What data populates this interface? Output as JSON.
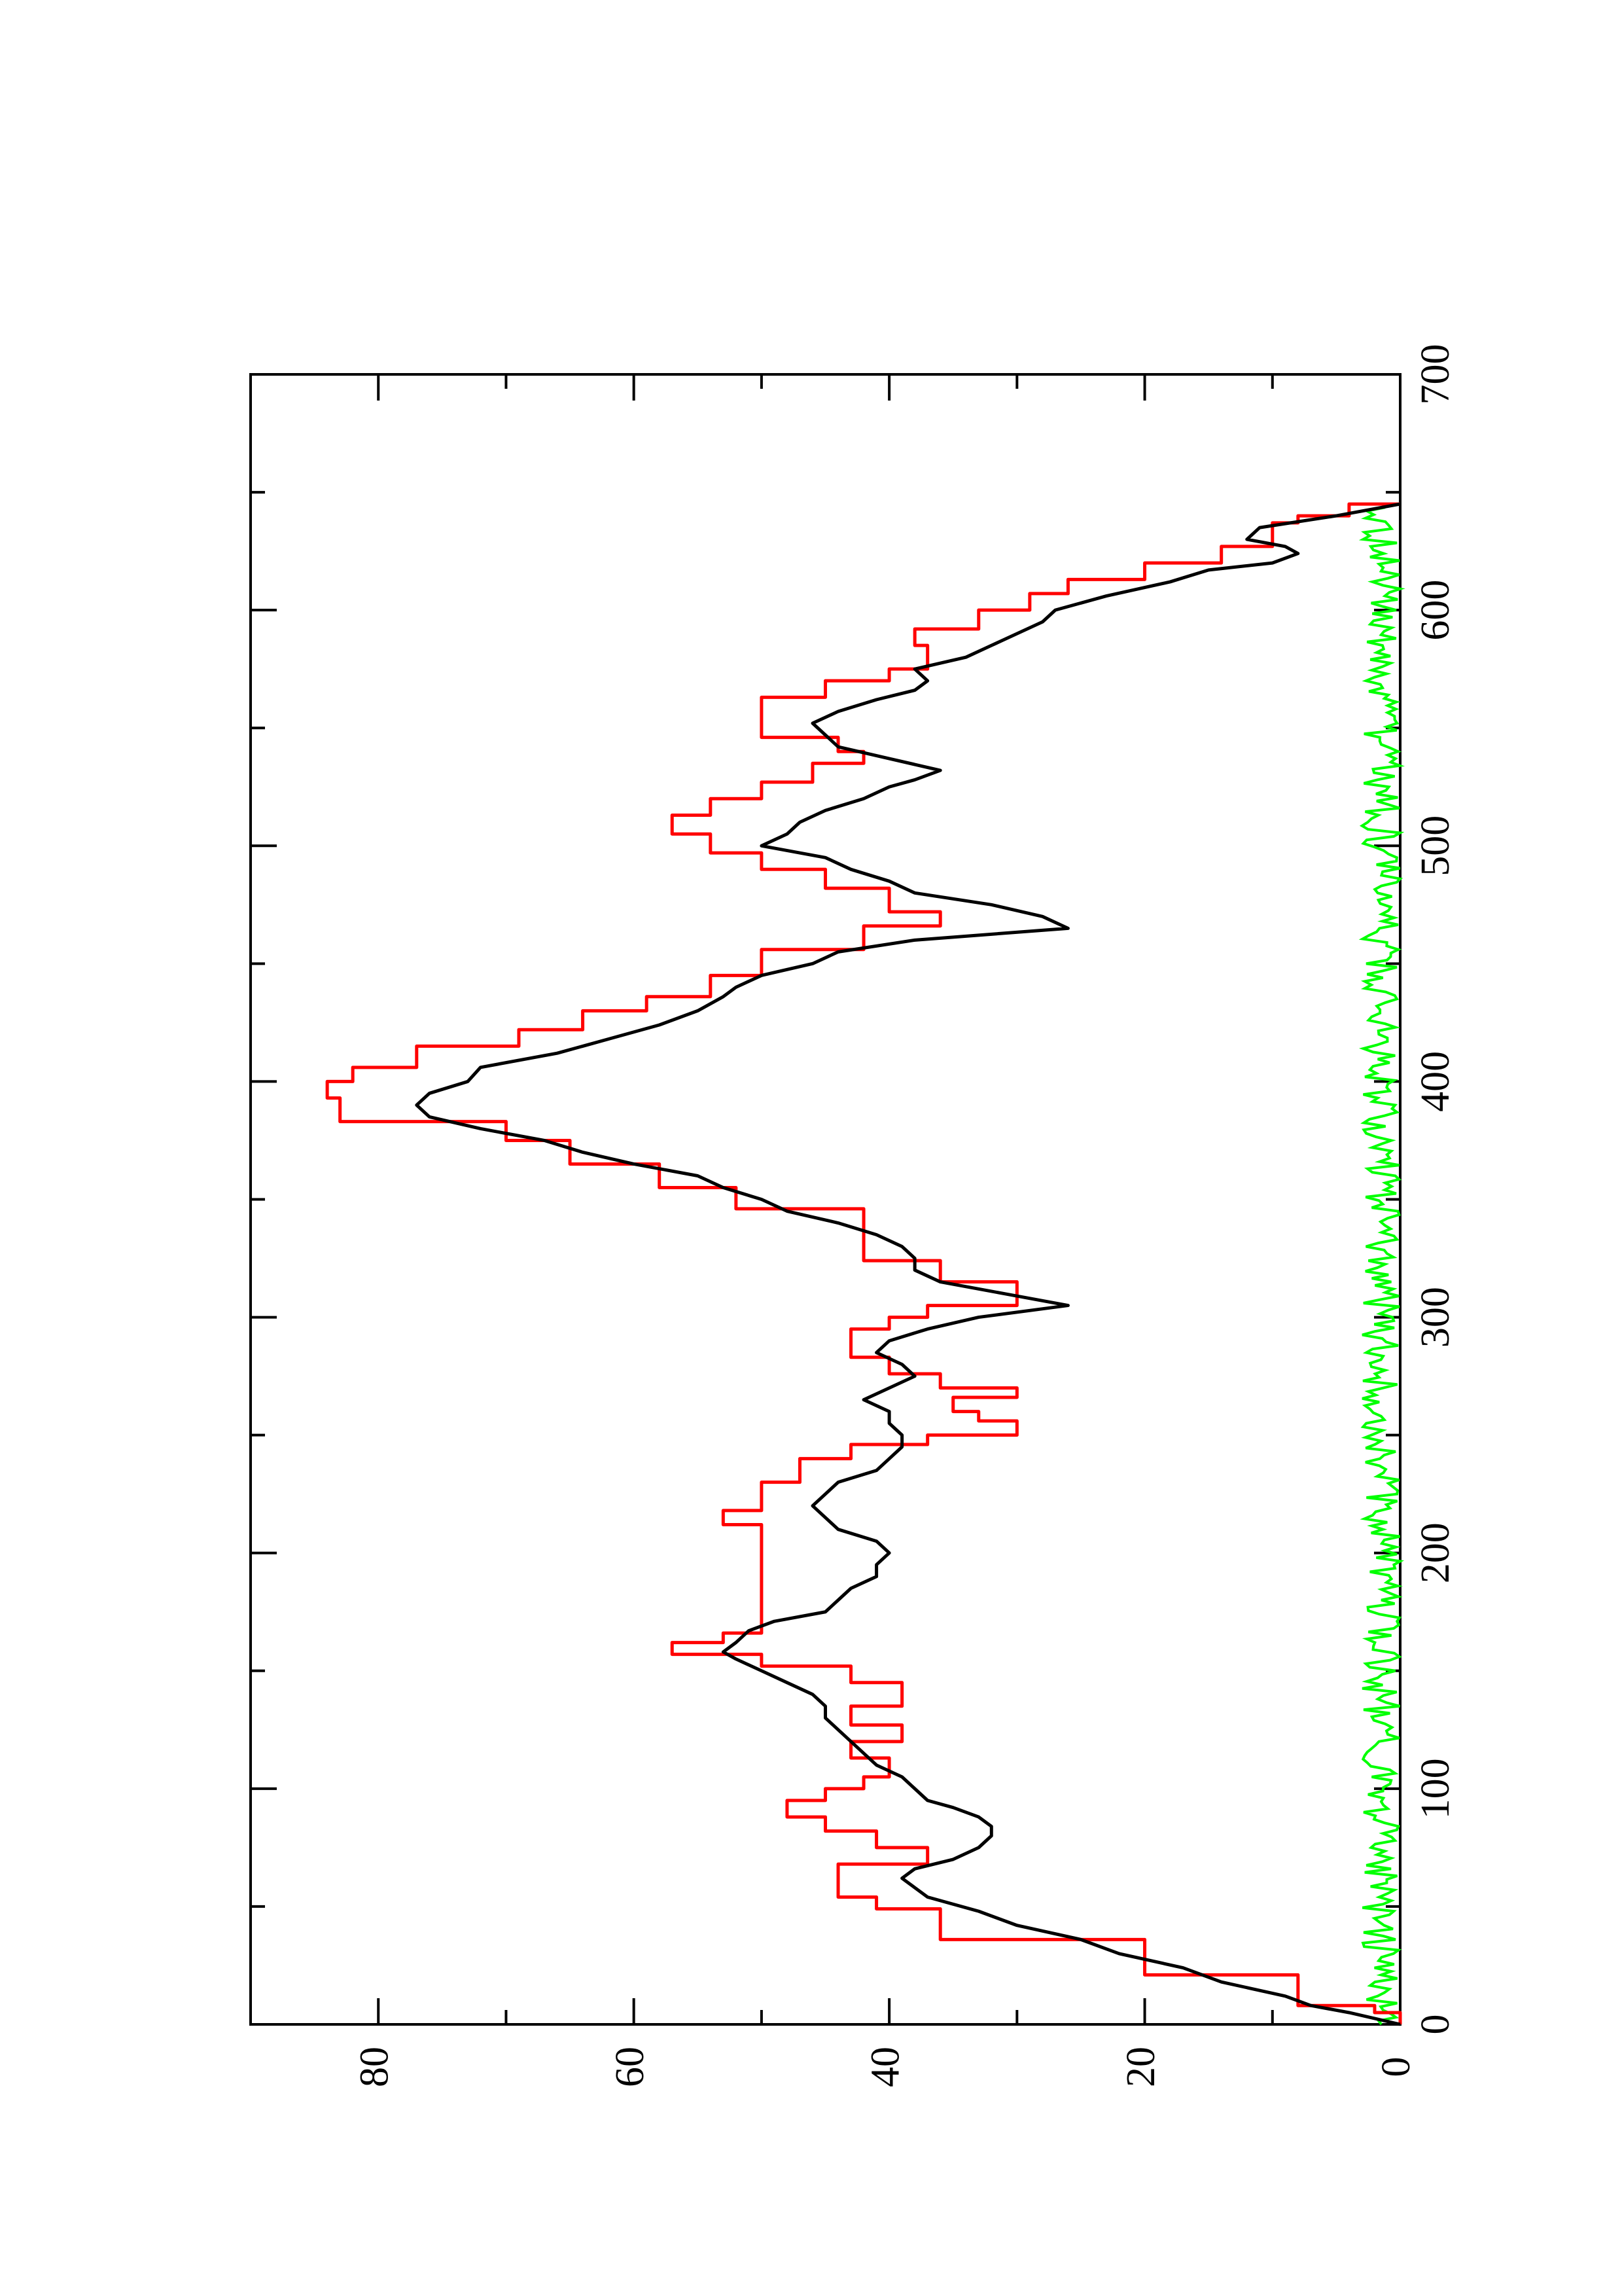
{
  "chart_data": {
    "type": "line",
    "orientation": "rotated 90 degrees counter-clockwise (x axis runs bottom-to-top, y axis runs right-to-left)",
    "title": "",
    "xlabel": "",
    "ylabel": "",
    "xlim": [
      0,
      700
    ],
    "ylim": [
      0,
      90
    ],
    "x_ticks": [
      0,
      100,
      200,
      300,
      400,
      500,
      600,
      700
    ],
    "y_ticks": [
      0,
      20,
      40,
      60,
      80
    ],
    "x_tick_labels": [
      "0",
      "100",
      "200",
      "300",
      "400",
      "500",
      "600",
      "700"
    ],
    "y_tick_labels": [
      "0",
      "20",
      "40",
      "60",
      "80"
    ],
    "grid": false,
    "legend": "none",
    "series": [
      {
        "color": "#ff0000",
        "style": "step",
        "points": [
          [
            0,
            0
          ],
          [
            5,
            2
          ],
          [
            8,
            8
          ],
          [
            21,
            20
          ],
          [
            36,
            36
          ],
          [
            49,
            41
          ],
          [
            54,
            44
          ],
          [
            63,
            44
          ],
          [
            68,
            40
          ],
          [
            68,
            37
          ],
          [
            75,
            41
          ],
          [
            82,
            45
          ],
          [
            88,
            48
          ],
          [
            95,
            45
          ],
          [
            100,
            42
          ],
          [
            105,
            40
          ],
          [
            113,
            43
          ],
          [
            120,
            39
          ],
          [
            127,
            43
          ],
          [
            135,
            39
          ],
          [
            140,
            39
          ],
          [
            145,
            43
          ],
          [
            152,
            50
          ],
          [
            157,
            57
          ],
          [
            162,
            53
          ],
          [
            166,
            50
          ],
          [
            206,
            50
          ],
          [
            212,
            53
          ],
          [
            218,
            50
          ],
          [
            230,
            47
          ],
          [
            240,
            43
          ],
          [
            246,
            37
          ],
          [
            250,
            30
          ],
          [
            256,
            33
          ],
          [
            260,
            35
          ],
          [
            266,
            30
          ],
          [
            270,
            36
          ],
          [
            276,
            40
          ],
          [
            283,
            43
          ],
          [
            287,
            43
          ],
          [
            295,
            40
          ],
          [
            300,
            37
          ],
          [
            305,
            30
          ],
          [
            315,
            36
          ],
          [
            324,
            42
          ],
          [
            332,
            42
          ],
          [
            346,
            52
          ],
          [
            355,
            58
          ],
          [
            365,
            65
          ],
          [
            375,
            70
          ],
          [
            383,
            83
          ],
          [
            393,
            84
          ],
          [
            400,
            82
          ],
          [
            406,
            77
          ],
          [
            415,
            69
          ],
          [
            422,
            64
          ],
          [
            430,
            59
          ],
          [
            436,
            54
          ],
          [
            445,
            50
          ],
          [
            456,
            42
          ],
          [
            466,
            36
          ],
          [
            472,
            40
          ],
          [
            482,
            45
          ],
          [
            490,
            50
          ],
          [
            497,
            54
          ],
          [
            505,
            57
          ],
          [
            513,
            54
          ],
          [
            520,
            50
          ],
          [
            527,
            46
          ],
          [
            535,
            42
          ],
          [
            540,
            44
          ],
          [
            546,
            50
          ],
          [
            554,
            50
          ],
          [
            563,
            45
          ],
          [
            570,
            40
          ],
          [
            575,
            37
          ],
          [
            580,
            37
          ],
          [
            585,
            38
          ],
          [
            592,
            33
          ],
          [
            600,
            29
          ],
          [
            607,
            26
          ],
          [
            613,
            20
          ],
          [
            620,
            14
          ],
          [
            627,
            10
          ],
          [
            632,
            10
          ],
          [
            637,
            8
          ],
          [
            640,
            4
          ],
          [
            645,
            0
          ]
        ]
      },
      {
        "color": "#000000",
        "style": "line",
        "points": [
          [
            0,
            0
          ],
          [
            5,
            4
          ],
          [
            8,
            7
          ],
          [
            12,
            9
          ],
          [
            18,
            14
          ],
          [
            24,
            17
          ],
          [
            30,
            22
          ],
          [
            36,
            25
          ],
          [
            42,
            30
          ],
          [
            48,
            33
          ],
          [
            54,
            37
          ],
          [
            58,
            38
          ],
          [
            62,
            39
          ],
          [
            66,
            38
          ],
          [
            70,
            35
          ],
          [
            75,
            33
          ],
          [
            80,
            32
          ],
          [
            84,
            32
          ],
          [
            88,
            33
          ],
          [
            92,
            35
          ],
          [
            95,
            37
          ],
          [
            100,
            38
          ],
          [
            105,
            39
          ],
          [
            110,
            41
          ],
          [
            115,
            42
          ],
          [
            120,
            43
          ],
          [
            125,
            44
          ],
          [
            130,
            45
          ],
          [
            135,
            45
          ],
          [
            140,
            46
          ],
          [
            145,
            48
          ],
          [
            150,
            50
          ],
          [
            155,
            52
          ],
          [
            158,
            53
          ],
          [
            162,
            52
          ],
          [
            167,
            51
          ],
          [
            171,
            49
          ],
          [
            175,
            45
          ],
          [
            180,
            44
          ],
          [
            185,
            43
          ],
          [
            190,
            41
          ],
          [
            195,
            41
          ],
          [
            200,
            40
          ],
          [
            205,
            41
          ],
          [
            210,
            44
          ],
          [
            215,
            45
          ],
          [
            220,
            46
          ],
          [
            225,
            45
          ],
          [
            230,
            44
          ],
          [
            235,
            41
          ],
          [
            240,
            40
          ],
          [
            245,
            39
          ],
          [
            250,
            39
          ],
          [
            255,
            40
          ],
          [
            260,
            40
          ],
          [
            265,
            42
          ],
          [
            270,
            40
          ],
          [
            275,
            38
          ],
          [
            280,
            39
          ],
          [
            285,
            41
          ],
          [
            290,
            40
          ],
          [
            295,
            37
          ],
          [
            300,
            33
          ],
          [
            305,
            26
          ],
          [
            310,
            31
          ],
          [
            315,
            36
          ],
          [
            320,
            38
          ],
          [
            325,
            38
          ],
          [
            330,
            39
          ],
          [
            335,
            41
          ],
          [
            340,
            44
          ],
          [
            345,
            48
          ],
          [
            350,
            50
          ],
          [
            355,
            53
          ],
          [
            360,
            55
          ],
          [
            365,
            60
          ],
          [
            370,
            64
          ],
          [
            375,
            67
          ],
          [
            380,
            72
          ],
          [
            385,
            76
          ],
          [
            390,
            77
          ],
          [
            395,
            76
          ],
          [
            400,
            73
          ],
          [
            406,
            72
          ],
          [
            412,
            66
          ],
          [
            418,
            62
          ],
          [
            424,
            58
          ],
          [
            430,
            55
          ],
          [
            436,
            53
          ],
          [
            440,
            52
          ],
          [
            445,
            50
          ],
          [
            450,
            46
          ],
          [
            455,
            44
          ],
          [
            460,
            38
          ],
          [
            465,
            26
          ],
          [
            470,
            28
          ],
          [
            475,
            32
          ],
          [
            480,
            38
          ],
          [
            485,
            40
          ],
          [
            490,
            43
          ],
          [
            495,
            45
          ],
          [
            500,
            50
          ],
          [
            505,
            48
          ],
          [
            510,
            47
          ],
          [
            515,
            45
          ],
          [
            520,
            42
          ],
          [
            525,
            40
          ],
          [
            528,
            38
          ],
          [
            532,
            36
          ],
          [
            537,
            40
          ],
          [
            542,
            44
          ],
          [
            547,
            45
          ],
          [
            552,
            46
          ],
          [
            557,
            44
          ],
          [
            562,
            41
          ],
          [
            566,
            38
          ],
          [
            570,
            37
          ],
          [
            575,
            38
          ],
          [
            580,
            34
          ],
          [
            585,
            32
          ],
          [
            590,
            30
          ],
          [
            595,
            28
          ],
          [
            600,
            27
          ],
          [
            606,
            23
          ],
          [
            612,
            18
          ],
          [
            617,
            15
          ],
          [
            620,
            10
          ],
          [
            624,
            8
          ],
          [
            627,
            9
          ],
          [
            630,
            12
          ],
          [
            635,
            11
          ],
          [
            640,
            5
          ],
          [
            645,
            0
          ]
        ]
      },
      {
        "color": "#00ff00",
        "style": "line",
        "description": "noise band near zero, values between 0 and about 3",
        "range": [
          0,
          3
        ]
      }
    ]
  }
}
